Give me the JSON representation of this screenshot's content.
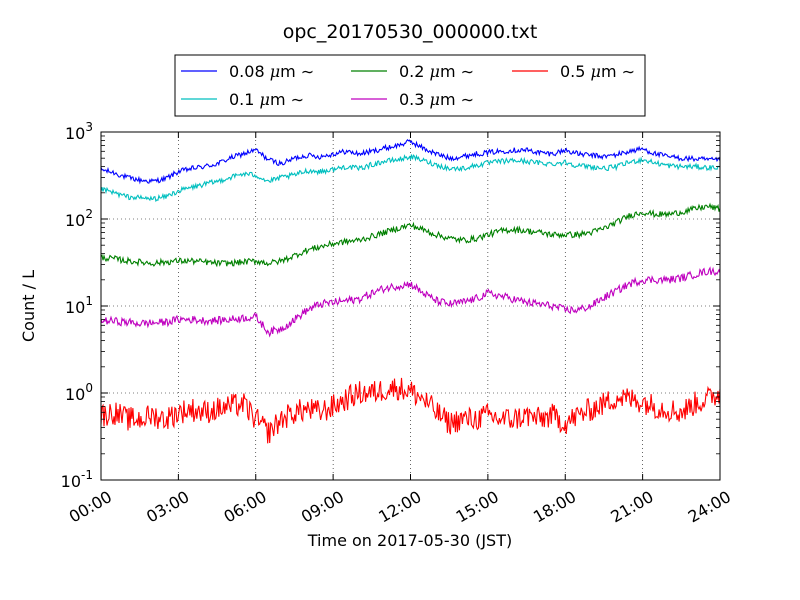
{
  "chart_data": {
    "type": "line",
    "title": "opc_20170530_000000.txt",
    "xlabel": "Time on 2017-05-30 (JST)",
    "ylabel": "Count / L",
    "yscale": "log",
    "ylim": [
      0.1,
      1000
    ],
    "xlim": [
      "00:00",
      "24:00"
    ],
    "grid": true,
    "legend_position": "top, above plot",
    "x_tick_labels": [
      "00:00",
      "03:00",
      "06:00",
      "09:00",
      "12:00",
      "15:00",
      "18:00",
      "21:00",
      "24:00"
    ],
    "y_ticks": [
      {
        "base": "10",
        "exp": "-1"
      },
      {
        "base": "10",
        "exp": "0"
      },
      {
        "base": "10",
        "exp": "1"
      },
      {
        "base": "10",
        "exp": "2"
      },
      {
        "base": "10",
        "exp": "3"
      }
    ],
    "x": [
      "00:00",
      "00:30",
      "01:00",
      "01:30",
      "02:00",
      "02:30",
      "03:00",
      "03:30",
      "04:00",
      "04:30",
      "05:00",
      "05:30",
      "06:00",
      "06:30",
      "07:00",
      "07:30",
      "08:00",
      "08:30",
      "09:00",
      "09:30",
      "10:00",
      "10:30",
      "11:00",
      "11:30",
      "12:00",
      "12:30",
      "13:00",
      "13:30",
      "14:00",
      "14:30",
      "15:00",
      "15:30",
      "16:00",
      "16:30",
      "17:00",
      "17:30",
      "18:00",
      "18:30",
      "19:00",
      "19:30",
      "20:00",
      "20:30",
      "21:00",
      "21:30",
      "22:00",
      "22:30",
      "23:00",
      "23:30",
      "24:00"
    ],
    "series": [
      {
        "name": "0.08",
        "unit": "μm",
        "suffix": "∼",
        "color": "#0000ff",
        "values": [
          370,
          340,
          300,
          280,
          270,
          290,
          350,
          380,
          400,
          430,
          500,
          560,
          620,
          480,
          430,
          500,
          540,
          520,
          560,
          600,
          560,
          600,
          650,
          700,
          780,
          650,
          560,
          500,
          520,
          560,
          580,
          600,
          620,
          620,
          580,
          560,
          620,
          560,
          540,
          520,
          550,
          600,
          640,
          560,
          520,
          500,
          490,
          480,
          470
        ]
      },
      {
        "name": "0.1",
        "unit": "μm",
        "suffix": "∼",
        "color": "#00bfbf",
        "values": [
          220,
          200,
          180,
          175,
          170,
          180,
          210,
          230,
          250,
          270,
          300,
          330,
          320,
          270,
          300,
          320,
          360,
          350,
          370,
          400,
          380,
          420,
          460,
          480,
          520,
          470,
          420,
          380,
          380,
          410,
          440,
          460,
          470,
          460,
          440,
          430,
          450,
          410,
          400,
          380,
          400,
          450,
          480,
          440,
          410,
          400,
          400,
          390,
          390
        ]
      },
      {
        "name": "0.2",
        "unit": "μm",
        "suffix": "∼",
        "color": "#008000",
        "values": [
          36,
          35,
          33,
          32,
          31,
          32,
          33,
          33,
          32,
          31,
          31,
          32,
          33,
          31,
          33,
          38,
          44,
          48,
          52,
          55,
          57,
          63,
          70,
          78,
          85,
          75,
          66,
          60,
          57,
          59,
          66,
          73,
          76,
          73,
          70,
          66,
          66,
          66,
          70,
          78,
          92,
          110,
          120,
          113,
          113,
          120,
          130,
          140,
          130
        ]
      },
      {
        "name": "0.3",
        "unit": "μm",
        "suffix": "∼",
        "color": "#bf00bf",
        "values": [
          6.8,
          6.7,
          6.5,
          6.3,
          6.4,
          6.5,
          7.0,
          7.0,
          6.8,
          6.8,
          7.0,
          7.3,
          7.5,
          5.0,
          5.5,
          7.0,
          9.0,
          10.5,
          11.0,
          11.5,
          12.0,
          14.0,
          16.0,
          17.0,
          18.0,
          14.0,
          11.5,
          10.5,
          11.0,
          12.0,
          14.0,
          13.0,
          12.0,
          11.0,
          10.5,
          10.0,
          9.0,
          9.0,
          10.0,
          12.5,
          15.0,
          18.0,
          20.0,
          20.0,
          20.0,
          21.0,
          23.0,
          25.0,
          25.0
        ]
      },
      {
        "name": "0.5",
        "unit": "μm",
        "suffix": "∼",
        "color": "#ff0000",
        "values": [
          0.55,
          0.6,
          0.5,
          0.5,
          0.55,
          0.5,
          0.6,
          0.65,
          0.6,
          0.65,
          0.7,
          0.75,
          0.5,
          0.35,
          0.5,
          0.6,
          0.65,
          0.6,
          0.7,
          0.85,
          1.0,
          1.0,
          1.1,
          1.15,
          1.05,
          0.85,
          0.6,
          0.45,
          0.5,
          0.5,
          0.55,
          0.5,
          0.5,
          0.55,
          0.5,
          0.55,
          0.45,
          0.55,
          0.65,
          0.75,
          0.9,
          0.85,
          0.8,
          0.7,
          0.65,
          0.6,
          0.75,
          0.85,
          1.0
        ]
      }
    ]
  }
}
